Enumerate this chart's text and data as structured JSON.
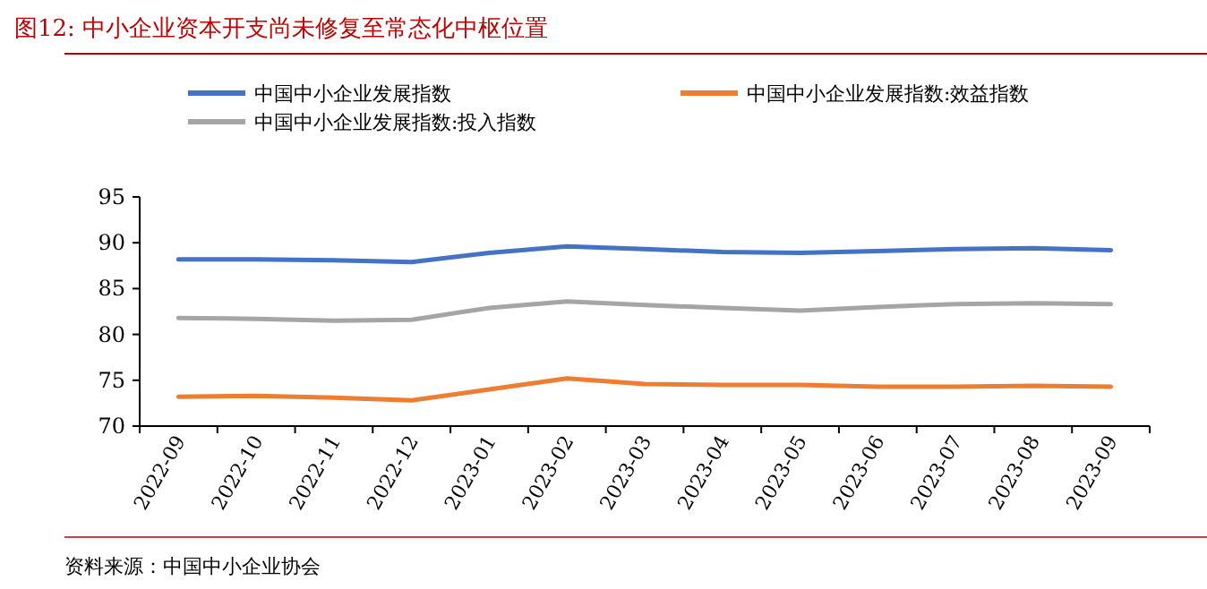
{
  "chart_data": {
    "type": "line",
    "title": "图12:   中小企业资本开支尚未修复至常态化中枢位置",
    "categories": [
      "2022-09",
      "2022-10",
      "2022-11",
      "2022-12",
      "2023-01",
      "2023-02",
      "2023-03",
      "2023-04",
      "2023-05",
      "2023-06",
      "2023-07",
      "2023-08",
      "2023-09"
    ],
    "series": [
      {
        "name": "中国中小企业发展指数",
        "color": "#4472c4",
        "values": [
          88.2,
          88.2,
          88.1,
          87.9,
          88.9,
          89.6,
          89.3,
          89.0,
          88.9,
          89.1,
          89.3,
          89.4,
          89.2
        ]
      },
      {
        "name": "中国中小企业发展指数:效益指数",
        "color": "#ed7d31",
        "values": [
          73.2,
          73.3,
          73.1,
          72.8,
          74.0,
          75.2,
          74.6,
          74.5,
          74.5,
          74.3,
          74.3,
          74.4,
          74.3
        ]
      },
      {
        "name": "中国中小企业发展指数:投入指数",
        "color": "#a5a5a5",
        "values": [
          81.8,
          81.7,
          81.5,
          81.6,
          82.9,
          83.6,
          83.2,
          82.9,
          82.6,
          83.0,
          83.3,
          83.4,
          83.3
        ]
      }
    ],
    "ylim": [
      70,
      95
    ],
    "yticks": [
      70,
      75,
      80,
      85,
      90,
      95
    ],
    "grid": false,
    "legend": "top",
    "marker": "none",
    "line_style": "solid",
    "annotations": [
      "资料来源：中国中小企业协会"
    ]
  }
}
